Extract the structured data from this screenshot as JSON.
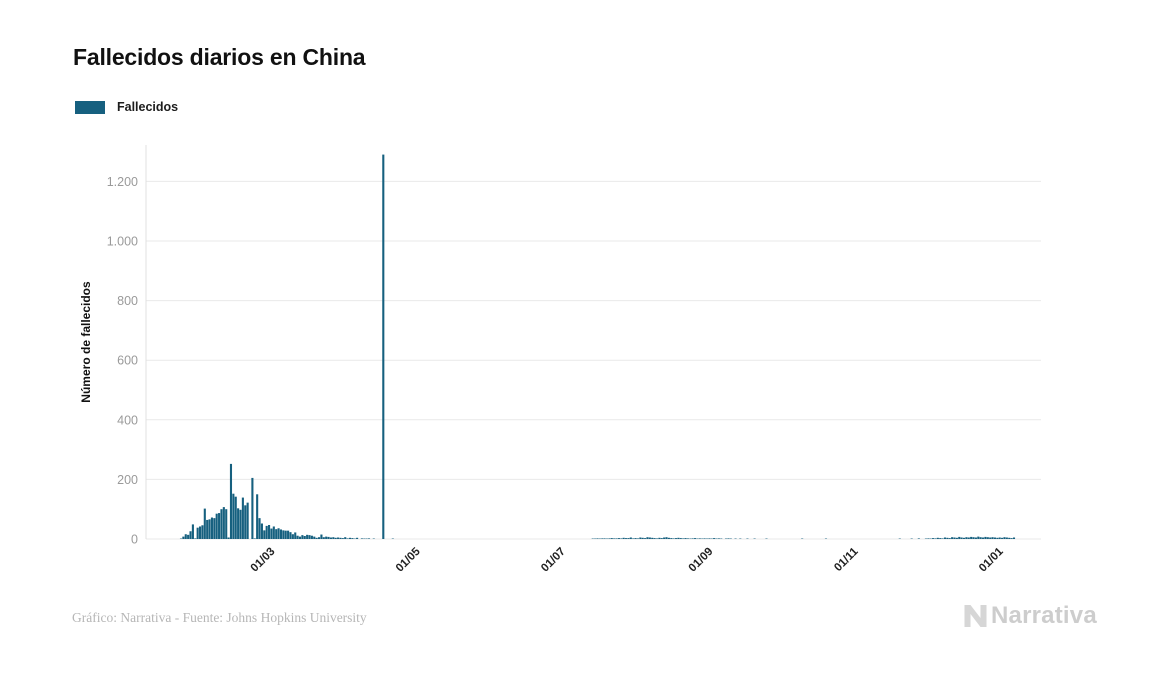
{
  "header": {
    "title": "Fallecidos diarios en China"
  },
  "legend": {
    "label": "Fallecidos",
    "swatch_color": "#16607f"
  },
  "footer": {
    "credit": "Gráfico: Narrativa - Fuente: Johns Hopkins University",
    "logo_text": "Narrativa"
  },
  "colors": {
    "bar": "#16607f",
    "title": "#111111",
    "y_tick_text": "#9a9a9a",
    "x_tick_text": "#222222",
    "gridline": "#e9e9e9",
    "footer_text": "#b6b6b6",
    "logo": "#cdcdcd"
  },
  "chart_data": {
    "type": "bar",
    "title": "Fallecidos diarios en China",
    "series_name": "Fallecidos",
    "xlabel": "",
    "ylabel": "Número de fallecidos",
    "ylim": [
      0,
      1300
    ],
    "grid": true,
    "legend_position": "top-left",
    "bar_color": "#16607f",
    "y_ticks": [
      {
        "value": 0,
        "label": "0"
      },
      {
        "value": 200,
        "label": "200"
      },
      {
        "value": 400,
        "label": "400"
      },
      {
        "value": 600,
        "label": "600"
      },
      {
        "value": 800,
        "label": "800"
      },
      {
        "value": 1000,
        "label": "1.000"
      },
      {
        "value": 1200,
        "label": "1.200"
      }
    ],
    "x_ticks": [
      {
        "date": "2020-03-01",
        "label": "01/03"
      },
      {
        "date": "2020-05-01",
        "label": "01/05"
      },
      {
        "date": "2020-07-01",
        "label": "01/07"
      },
      {
        "date": "2020-09-01",
        "label": "01/09"
      },
      {
        "date": "2020-11-01",
        "label": "01/11"
      },
      {
        "date": "2021-01-01",
        "label": "01/01"
      }
    ],
    "start_date": "2020-01-23",
    "peak": {
      "value": 1290,
      "approx_date": "2020-04-17"
    },
    "values": [
      1,
      8,
      16,
      14,
      26,
      49,
      2,
      38,
      42,
      46,
      102,
      64,
      66,
      72,
      70,
      85,
      87,
      100,
      107,
      100,
      5,
      252,
      152,
      142,
      103,
      98,
      139,
      113,
      122,
      0,
      205,
      2,
      150,
      70,
      52,
      29,
      44,
      47,
      35,
      42,
      33,
      36,
      32,
      29,
      28,
      28,
      23,
      16,
      22,
      11,
      8,
      13,
      10,
      14,
      13,
      11,
      8,
      4,
      6,
      15,
      6,
      8,
      7,
      5,
      6,
      4,
      5,
      4,
      3,
      6,
      2,
      4,
      3,
      1,
      4,
      0,
      2,
      1,
      1,
      2,
      0,
      1,
      0,
      0,
      0,
      1290,
      0,
      0,
      0,
      1,
      0,
      0,
      0,
      0,
      0,
      0,
      0,
      0,
      0,
      0,
      0,
      0,
      0,
      0,
      0,
      0,
      0,
      0,
      0,
      0,
      0,
      0,
      0,
      0,
      0,
      0,
      0,
      0,
      0,
      0,
      0,
      0,
      0,
      0,
      0,
      0,
      0,
      0,
      0,
      0,
      0,
      0,
      0,
      0,
      0,
      0,
      0,
      0,
      0,
      0,
      0,
      0,
      0,
      0,
      0,
      0,
      0,
      0,
      0,
      0,
      0,
      0,
      0,
      0,
      0,
      0,
      0,
      0,
      0,
      0,
      0,
      0,
      0,
      0,
      0,
      0,
      0,
      0,
      0,
      0,
      0,
      0,
      0,
      1,
      1,
      2,
      1,
      2,
      2,
      1,
      2,
      3,
      2,
      2,
      3,
      2,
      4,
      3,
      3,
      5,
      2,
      3,
      2,
      5,
      4,
      3,
      6,
      5,
      4,
      3,
      2,
      4,
      3,
      5,
      6,
      4,
      3,
      2,
      3,
      4,
      3,
      2,
      3,
      2,
      1,
      2,
      3,
      1,
      2,
      1,
      2,
      1,
      2,
      1,
      3,
      1,
      2,
      1,
      0,
      1,
      2,
      1,
      0,
      1,
      0,
      1,
      0,
      0,
      1,
      0,
      0,
      1,
      0,
      0,
      0,
      0,
      1,
      0,
      0,
      0,
      0,
      0,
      0,
      0,
      0,
      0,
      0,
      0,
      0,
      0,
      0,
      1,
      0,
      0,
      0,
      0,
      0,
      0,
      0,
      0,
      0,
      1,
      0,
      0,
      0,
      0,
      0,
      0,
      0,
      0,
      0,
      0,
      0,
      0,
      0,
      0,
      0,
      0,
      0,
      0,
      0,
      0,
      0,
      0,
      0,
      0,
      0,
      0,
      0,
      0,
      0,
      0,
      1,
      0,
      0,
      0,
      0,
      1,
      0,
      0,
      2,
      0,
      0,
      1,
      2,
      1,
      3,
      2,
      4,
      3,
      2,
      5,
      4,
      3,
      6,
      5,
      4,
      7,
      5,
      4,
      6,
      5,
      7,
      6,
      5,
      8,
      6,
      5,
      7,
      6,
      5,
      6,
      5,
      4,
      5,
      4,
      6,
      5,
      4,
      3,
      5
    ]
  }
}
